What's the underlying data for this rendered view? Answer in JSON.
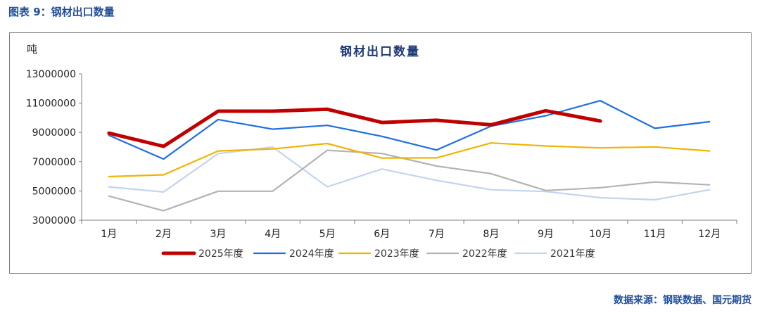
{
  "figure_title": "图表 9：钢材出口数量",
  "source_note": "数据来源：钢联数据、国元期货",
  "chart_data": {
    "type": "line",
    "title": "钢材出口数量",
    "unit_label": "吨",
    "categories": [
      "1月",
      "2月",
      "3月",
      "4月",
      "5月",
      "6月",
      "7月",
      "8月",
      "9月",
      "10月",
      "11月",
      "12月"
    ],
    "ylim": [
      3000000,
      13000000
    ],
    "yticks": [
      "13000000",
      "11000000",
      "9000000",
      "7000000",
      "5000000",
      "3000000"
    ],
    "ytick_values": [
      13000000,
      11000000,
      9000000,
      7000000,
      5000000,
      3000000
    ],
    "grid": false,
    "legend_position": "bottom",
    "series": [
      {
        "name": "2025年度",
        "color": "#c00000",
        "width": 5,
        "values": [
          8950000,
          8050000,
          10450000,
          10450000,
          10580000,
          9680000,
          9830000,
          9520000,
          10480000,
          9780000,
          null,
          null
        ]
      },
      {
        "name": "2024年度",
        "color": "#1f6fe0",
        "width": 2.2,
        "values": [
          8800000,
          7180000,
          9880000,
          9220000,
          9480000,
          8730000,
          7800000,
          9430000,
          10140000,
          11170000,
          9280000,
          9730000
        ]
      },
      {
        "name": "2023年度",
        "color": "#f0b400",
        "width": 2.2,
        "values": [
          5980000,
          6100000,
          7730000,
          7870000,
          8240000,
          7250000,
          7260000,
          8280000,
          8070000,
          7940000,
          8010000,
          7730000
        ]
      },
      {
        "name": "2022年度",
        "color": "#b3b3b3",
        "width": 2.2,
        "values": [
          4650000,
          3650000,
          4980000,
          4980000,
          7780000,
          7560000,
          6700000,
          6180000,
          5030000,
          5220000,
          5610000,
          5420000
        ]
      },
      {
        "name": "2021年度",
        "color": "#c3d4f0",
        "width": 2.2,
        "values": [
          5280000,
          4930000,
          7550000,
          8000000,
          5280000,
          6500000,
          5720000,
          5080000,
          4960000,
          4540000,
          4400000,
          5080000
        ]
      }
    ]
  }
}
